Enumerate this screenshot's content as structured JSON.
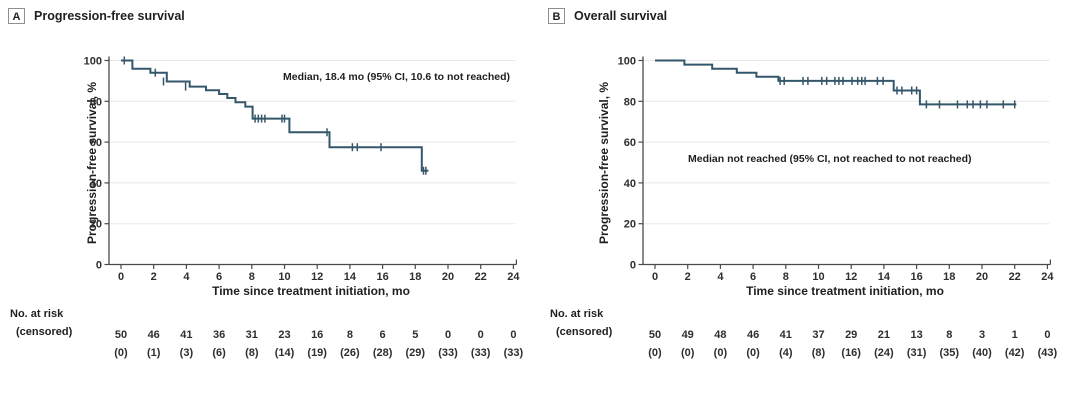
{
  "colors": {
    "curve": "#35576B",
    "grid": "#E8E8E8",
    "axis": "#4A4A4A",
    "text": "#1F1F1F",
    "background": "#FFFFFF"
  },
  "chart_data": [
    {
      "type": "line",
      "subtype": "kaplan-meier-step-curve",
      "panel_letter": "A",
      "title": "Progression-free survival",
      "xlabel": "Time since treatment initiation, mo",
      "ylabel": "Progression-free survival, %",
      "annotation": "Median, 18.4 mo (95% CI, 10.6 to not reached)",
      "xlim": [
        0,
        24
      ],
      "ylim": [
        0,
        100
      ],
      "x_ticks": [
        0,
        2,
        4,
        6,
        8,
        10,
        12,
        14,
        16,
        18,
        20,
        22,
        24
      ],
      "y_ticks": [
        0,
        20,
        40,
        60,
        80,
        100
      ],
      "grid": "horizontal",
      "legend": "none",
      "steps": [
        [
          0,
          100
        ],
        [
          0.7,
          96
        ],
        [
          1.8,
          94
        ],
        [
          2.8,
          89.7
        ],
        [
          4.2,
          87.2
        ],
        [
          5.2,
          85.4
        ],
        [
          6.0,
          83.6
        ],
        [
          6.5,
          81.6
        ],
        [
          7.0,
          79.5
        ],
        [
          7.6,
          77.4
        ],
        [
          8.05,
          71.5
        ],
        [
          10.3,
          64.8
        ],
        [
          12.75,
          57.5
        ],
        [
          18.4,
          46
        ]
      ],
      "end_time": 18.8,
      "censor_marks": [
        [
          0.2,
          100
        ],
        [
          2.1,
          94
        ],
        [
          2.6,
          89.7
        ],
        [
          3.95,
          87.2
        ],
        [
          8.2,
          71.5
        ],
        [
          8.4,
          71.5
        ],
        [
          8.6,
          71.5
        ],
        [
          8.8,
          71.5
        ],
        [
          9.85,
          71.5
        ],
        [
          10.0,
          71.5
        ],
        [
          12.6,
          64.8
        ],
        [
          14.15,
          57.5
        ],
        [
          14.45,
          57.5
        ],
        [
          15.9,
          57.5
        ],
        [
          18.5,
          46
        ],
        [
          18.65,
          46
        ]
      ],
      "at_risk_label": "No. at risk",
      "censored_label": "(censored)",
      "at_risk": [
        "50",
        "46",
        "41",
        "36",
        "31",
        "23",
        "16",
        "8",
        "6",
        "5",
        "0",
        "0",
        "0"
      ],
      "censored": [
        "(0)",
        "(1)",
        "(3)",
        "(6)",
        "(8)",
        "(14)",
        "(19)",
        "(26)",
        "(28)",
        "(29)",
        "(33)",
        "(33)",
        "(33)"
      ]
    },
    {
      "type": "line",
      "subtype": "kaplan-meier-step-curve",
      "panel_letter": "B",
      "title": "Overall survival",
      "xlabel": "Time since treatment initiation, mo",
      "ylabel": "Progression-free survival, %",
      "annotation": "Median not reached (95% CI, not reached to not reached)",
      "xlim": [
        0,
        24
      ],
      "ylim": [
        0,
        100
      ],
      "x_ticks": [
        0,
        2,
        4,
        6,
        8,
        10,
        12,
        14,
        16,
        18,
        20,
        22,
        24
      ],
      "y_ticks": [
        0,
        20,
        40,
        60,
        80,
        100
      ],
      "grid": "horizontal",
      "legend": "none",
      "steps": [
        [
          0,
          100
        ],
        [
          1.8,
          98
        ],
        [
          3.5,
          96
        ],
        [
          5.0,
          94
        ],
        [
          6.2,
          92
        ],
        [
          7.55,
          90
        ],
        [
          14.6,
          85.3
        ],
        [
          16.2,
          78.5
        ]
      ],
      "end_time": 22.1,
      "censor_marks": [
        [
          7.65,
          90
        ],
        [
          7.9,
          90
        ],
        [
          9.05,
          90
        ],
        [
          9.35,
          90
        ],
        [
          10.2,
          90
        ],
        [
          10.5,
          90
        ],
        [
          11.0,
          90
        ],
        [
          11.25,
          90
        ],
        [
          11.5,
          90
        ],
        [
          12.05,
          90
        ],
        [
          12.4,
          90
        ],
        [
          12.65,
          90
        ],
        [
          12.85,
          90
        ],
        [
          13.6,
          90
        ],
        [
          13.95,
          90
        ],
        [
          14.8,
          85.3
        ],
        [
          15.1,
          85.3
        ],
        [
          15.7,
          85.3
        ],
        [
          16.0,
          85.3
        ],
        [
          16.6,
          78.5
        ],
        [
          17.4,
          78.5
        ],
        [
          18.5,
          78.5
        ],
        [
          19.1,
          78.5
        ],
        [
          19.45,
          78.5
        ],
        [
          19.9,
          78.5
        ],
        [
          20.3,
          78.5
        ],
        [
          21.3,
          78.5
        ],
        [
          22.0,
          78.5
        ]
      ],
      "at_risk_label": "No. at risk",
      "censored_label": "(censored)",
      "at_risk": [
        "50",
        "49",
        "48",
        "46",
        "41",
        "37",
        "29",
        "21",
        "13",
        "8",
        "3",
        "1",
        "0"
      ],
      "censored": [
        "(0)",
        "(0)",
        "(0)",
        "(0)",
        "(4)",
        "(8)",
        "(16)",
        "(24)",
        "(31)",
        "(35)",
        "(40)",
        "(42)",
        "(43)"
      ]
    }
  ]
}
